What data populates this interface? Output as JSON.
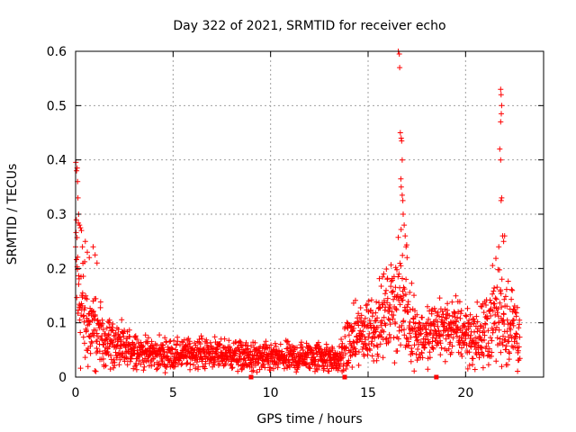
{
  "chart_data": {
    "type": "scatter",
    "title": "Day 322 of 2021, SRMTID for receiver echo",
    "xlabel": "GPS time / hours",
    "ylabel": "SRMTID / TECUs",
    "xlim": [
      0,
      24
    ],
    "ylim": [
      0,
      0.6
    ],
    "xticks": [
      "0",
      "5",
      "10",
      "15",
      "20"
    ],
    "xtick_values": [
      0,
      5,
      10,
      15,
      20
    ],
    "yticks": [
      "0",
      "0.1",
      "0.2",
      "0.3",
      "0.4",
      "0.5",
      "0.6"
    ],
    "ytick_values": [
      0,
      0.1,
      0.2,
      0.3,
      0.4,
      0.5,
      0.6
    ],
    "grid": true,
    "marker": "+",
    "colors": {
      "series": "#ff0000",
      "axis": "#000000",
      "grid": "#a0a0a0"
    },
    "gap_markers_x": [
      9.0,
      13.8,
      18.5
    ],
    "series": [
      {
        "name": "receiver echo",
        "profile": [
          [
            0.0,
            0.22,
            0.12
          ],
          [
            0.2,
            0.15,
            0.08
          ],
          [
            0.5,
            0.1,
            0.05
          ],
          [
            1.0,
            0.08,
            0.04
          ],
          [
            1.5,
            0.07,
            0.03
          ],
          [
            2.0,
            0.06,
            0.025
          ],
          [
            2.5,
            0.05,
            0.02
          ],
          [
            3.0,
            0.055,
            0.02
          ],
          [
            3.5,
            0.045,
            0.015
          ],
          [
            5.0,
            0.04,
            0.015
          ],
          [
            6.0,
            0.045,
            0.015
          ],
          [
            8.0,
            0.042,
            0.015
          ],
          [
            9.0,
            0.035,
            0.015
          ],
          [
            11.0,
            0.035,
            0.015
          ],
          [
            12.5,
            0.04,
            0.015
          ],
          [
            13.0,
            0.035,
            0.015
          ],
          [
            13.5,
            0.03,
            0.012
          ],
          [
            14.0,
            0.06,
            0.03
          ],
          [
            15.0,
            0.09,
            0.035
          ],
          [
            15.5,
            0.1,
            0.035
          ],
          [
            16.0,
            0.12,
            0.04
          ],
          [
            16.5,
            0.15,
            0.06
          ],
          [
            17.0,
            0.12,
            0.05
          ],
          [
            17.5,
            0.08,
            0.03
          ],
          [
            18.0,
            0.07,
            0.03
          ],
          [
            18.5,
            0.09,
            0.03
          ],
          [
            19.5,
            0.09,
            0.03
          ],
          [
            20.5,
            0.07,
            0.03
          ],
          [
            21.0,
            0.08,
            0.035
          ],
          [
            21.5,
            0.12,
            0.05
          ],
          [
            22.0,
            0.11,
            0.05
          ],
          [
            22.8,
            0.08,
            0.04
          ]
        ],
        "spikes": [
          [
            0.05,
            0.38
          ],
          [
            0.08,
            0.385
          ],
          [
            0.1,
            0.36
          ],
          [
            0.12,
            0.33
          ],
          [
            0.15,
            0.3
          ],
          [
            0.2,
            0.28
          ],
          [
            0.25,
            0.275
          ],
          [
            0.3,
            0.27
          ],
          [
            0.35,
            0.24
          ],
          [
            0.5,
            0.25
          ],
          [
            0.6,
            0.23
          ],
          [
            0.7,
            0.22
          ],
          [
            0.9,
            0.24
          ],
          [
            1.0,
            0.225
          ],
          [
            1.1,
            0.21
          ],
          [
            16.55,
            0.6
          ],
          [
            16.6,
            0.595
          ],
          [
            16.62,
            0.57
          ],
          [
            16.65,
            0.45
          ],
          [
            16.7,
            0.44
          ],
          [
            16.72,
            0.435
          ],
          [
            16.75,
            0.4
          ],
          [
            16.68,
            0.365
          ],
          [
            16.7,
            0.35
          ],
          [
            16.75,
            0.335
          ],
          [
            16.78,
            0.325
          ],
          [
            16.8,
            0.3
          ],
          [
            16.85,
            0.28
          ],
          [
            16.9,
            0.26
          ],
          [
            16.95,
            0.24
          ],
          [
            17.0,
            0.22
          ],
          [
            21.8,
            0.53
          ],
          [
            21.82,
            0.52
          ],
          [
            21.85,
            0.5
          ],
          [
            21.83,
            0.485
          ],
          [
            21.8,
            0.47
          ],
          [
            21.75,
            0.42
          ],
          [
            21.8,
            0.4
          ],
          [
            21.85,
            0.33
          ],
          [
            21.82,
            0.325
          ],
          [
            21.9,
            0.26
          ],
          [
            21.95,
            0.25
          ],
          [
            22.0,
            0.26
          ],
          [
            21.7,
            0.24
          ]
        ]
      }
    ]
  }
}
